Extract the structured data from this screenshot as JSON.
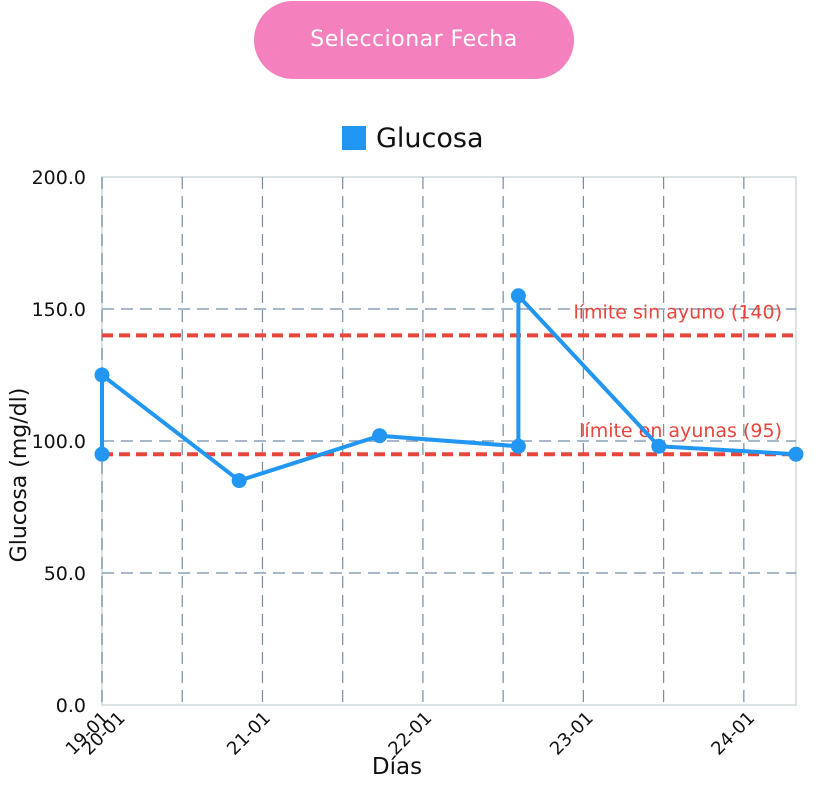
{
  "button": {
    "label": "Seleccionar Fecha"
  },
  "colors": {
    "button_bg": "#f580be",
    "series": "#2196f3",
    "limit": "#e8453c",
    "grid": "#5a7a9a"
  },
  "chart_data": {
    "type": "line",
    "title": "",
    "xlabel": "Días",
    "ylabel": "Glucosa (mg/dl)",
    "ylim": [
      0,
      200
    ],
    "yticks": [
      "0.0",
      "50.0",
      "100.0",
      "150.0",
      "200.0"
    ],
    "xticks": [
      {
        "label": "19-01",
        "x": 0.0
      },
      {
        "label": "20-01",
        "x": 0.1
      },
      {
        "label": "21-01",
        "x": 1.0
      },
      {
        "label": "22-01",
        "x": 2.0
      },
      {
        "label": "23-01",
        "x": 3.0
      },
      {
        "label": "24-01",
        "x": 4.0
      }
    ],
    "grid": true,
    "legend": "top-center",
    "series": [
      {
        "name": "Glucosa",
        "points": [
          {
            "x": 0.0,
            "y": 95
          },
          {
            "x": 0.0,
            "y": 125
          },
          {
            "x": 0.85,
            "y": 85
          },
          {
            "x": 1.72,
            "y": 102
          },
          {
            "x": 2.58,
            "y": 98
          },
          {
            "x": 2.58,
            "y": 155
          },
          {
            "x": 3.45,
            "y": 98
          },
          {
            "x": 4.3,
            "y": 95
          }
        ]
      }
    ],
    "limits": [
      {
        "label": "límite sin ayuno (140)",
        "value": 140
      },
      {
        "label": "límite en ayunas (95)",
        "value": 95
      }
    ]
  }
}
